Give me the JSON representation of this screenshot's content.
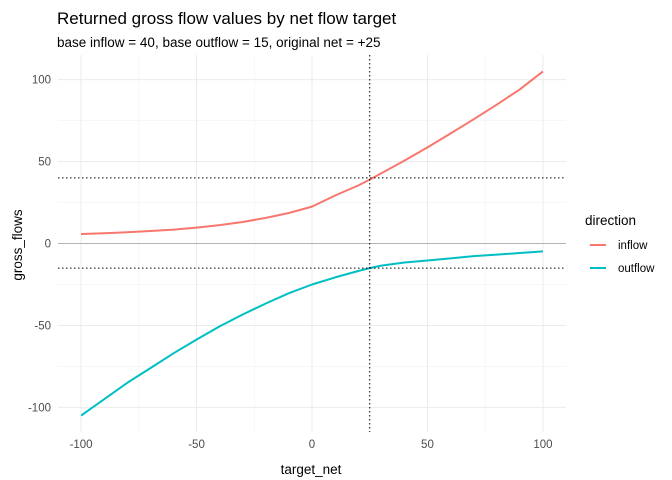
{
  "chart_data": {
    "type": "line",
    "title": "Returned gross flow values by net flow target",
    "subtitle": "base inflow = 40, base outflow = 15, original net = +25",
    "xlabel": "target_net",
    "ylabel": "gross_flows",
    "xlim": [
      -110,
      110
    ],
    "ylim": [
      -115,
      115
    ],
    "x_ticks": [
      -100,
      -50,
      0,
      50,
      100
    ],
    "y_ticks": [
      -100,
      -50,
      0,
      50,
      100
    ],
    "grid": true,
    "legend": {
      "title": "direction",
      "position": "right"
    },
    "reference_lines": {
      "vertical_x": 25,
      "horizontal_y": [
        40,
        -15
      ],
      "zero_line_y": 0
    },
    "series": [
      {
        "name": "inflow",
        "color": "#F8766D",
        "x": [
          -100,
          -90,
          -80,
          -70,
          -60,
          -50,
          -40,
          -30,
          -20,
          -10,
          0,
          10,
          20,
          25,
          30,
          40,
          50,
          60,
          70,
          80,
          90,
          100
        ],
        "y": [
          5.8,
          6.3,
          6.9,
          7.6,
          8.5,
          9.7,
          11.2,
          13.1,
          15.6,
          18.6,
          22.5,
          29.3,
          35.4,
          39.0,
          42.8,
          50.6,
          58.6,
          67.1,
          75.8,
          84.7,
          94.0,
          105.0
        ]
      },
      {
        "name": "outflow",
        "color": "#00BFC4",
        "x": [
          -100,
          -90,
          -80,
          -70,
          -60,
          -50,
          -40,
          -30,
          -20,
          -10,
          0,
          10,
          20,
          25,
          30,
          40,
          50,
          60,
          70,
          80,
          90,
          100
        ],
        "y": [
          -105.0,
          -95.0,
          -85.0,
          -76.0,
          -67.0,
          -58.6,
          -50.6,
          -43.3,
          -36.6,
          -30.3,
          -25.0,
          -20.7,
          -16.8,
          -15.0,
          -13.5,
          -11.6,
          -10.4,
          -9.1,
          -7.7,
          -6.8,
          -5.8,
          -4.8
        ]
      }
    ]
  }
}
